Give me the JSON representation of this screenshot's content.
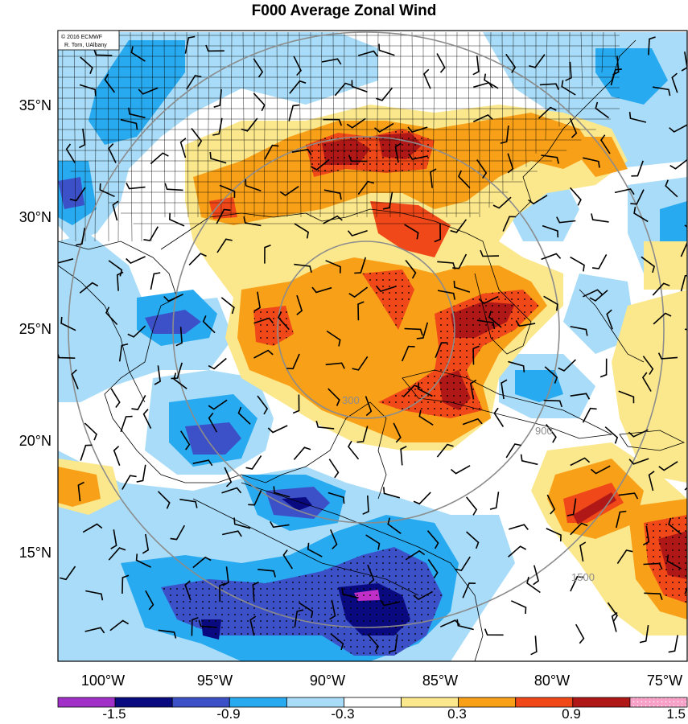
{
  "title": "F000 Average Zonal Wind",
  "credit": {
    "line1": "© 2016 ECMWF",
    "line2": "R. Torn, UAlbany"
  },
  "map": {
    "lon_range": [
      -102,
      -74
    ],
    "lat_range": [
      10,
      38
    ],
    "lat_labels": [
      "35°N",
      "30°N",
      "25°N",
      "20°N",
      "15°N"
    ],
    "lon_labels": [
      "100°W",
      "95°W",
      "90°W",
      "85°W",
      "80°W",
      "75°W"
    ],
    "ring_labels": [
      "300",
      "900",
      "1500"
    ]
  },
  "colorbar": {
    "labels": [
      "-1.5",
      "-0.9",
      "-0.3",
      "0.3",
      "0.9",
      "1.5"
    ],
    "colors": [
      "#a030c8",
      "#0a0a80",
      "#3c50c8",
      "#28aaf0",
      "#a8dcf8",
      "#ffffff",
      "#fce88c",
      "#f8a018",
      "#f04818",
      "#b01818",
      "#f8a0c8"
    ]
  },
  "fill_colors": {
    "strong_neg": "#0a0a80",
    "mod_neg": "#3c50c8",
    "weak_neg": "#28aaf0",
    "faint_neg": "#a8dcf8",
    "faint_pos": "#fce88c",
    "weak_pos": "#f8a018",
    "mod_pos": "#f04818",
    "strong_pos": "#b01818",
    "extreme_neg": "#c030c8",
    "ring": "#8c8c8c"
  }
}
